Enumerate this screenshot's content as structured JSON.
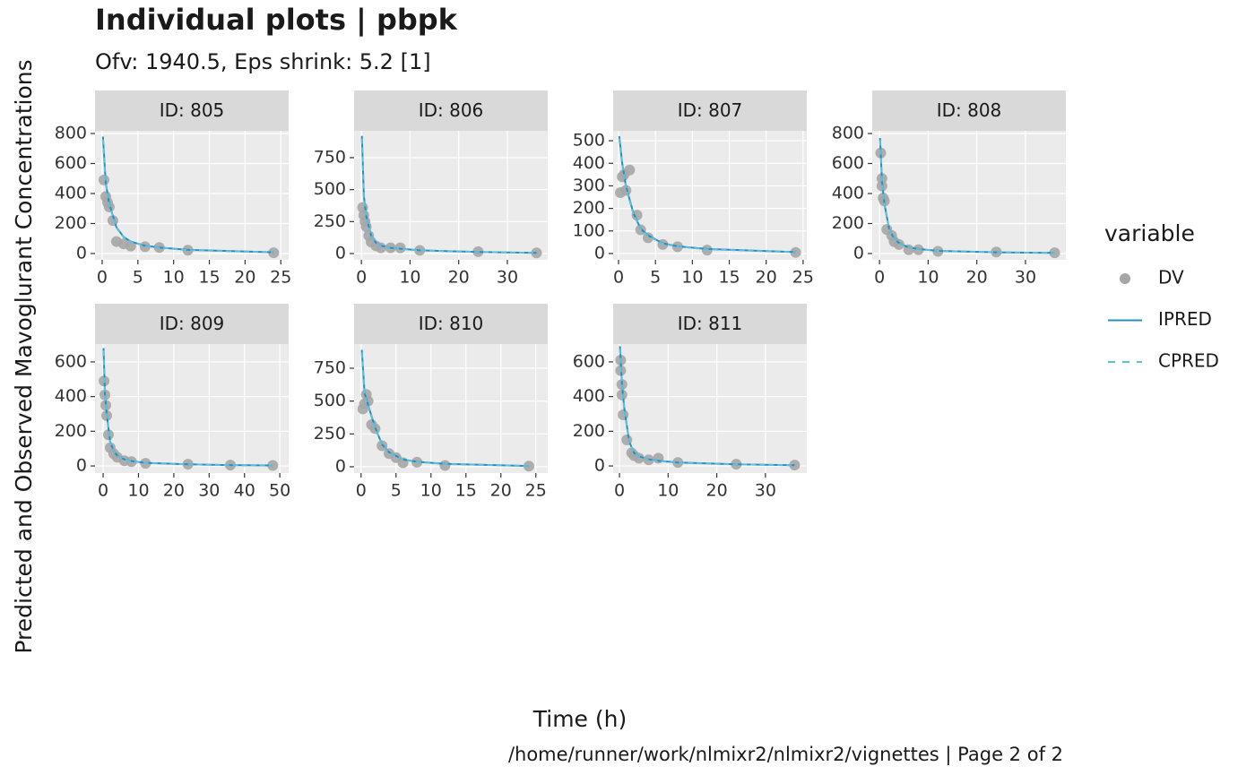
{
  "title": "Individual plots | pbpk",
  "subtitle": "Ofv: 1940.5, Eps shrink: 5.2 [1]",
  "x_label": "Time (h)",
  "y_label": "Predicted and Observed Mavoglurant Concentrations",
  "caption": "/home/runner/work/nlmixr2/nlmixr2/vignettes | Page 2 of 2",
  "legend_title": "variable",
  "chart_data": [
    {
      "type": "scatter-line",
      "title": "ID: 805",
      "xlim": [
        -1.0,
        26.1
      ],
      "xticks": [
        0,
        5,
        10,
        15,
        20,
        25
      ],
      "ylim": [
        -42,
        818
      ],
      "yticks": [
        0,
        200,
        400,
        600,
        800
      ],
      "grid": true,
      "series": [
        {
          "name": "DV",
          "color": "#a6a6a6",
          "x": [
            0.25,
            0.5,
            0.75,
            1,
            1.5,
            2,
            3,
            4,
            6,
            8,
            12,
            24
          ],
          "values": [
            490,
            380,
            340,
            310,
            220,
            80,
            65,
            50,
            45,
            40,
            22,
            5
          ]
        },
        {
          "name": "IPRED",
          "color": "#2b8cbe",
          "x": [
            0.1,
            0.5,
            1,
            2,
            3,
            4,
            6,
            8,
            12,
            24
          ],
          "values": [
            780,
            470,
            330,
            175,
            110,
            80,
            52,
            40,
            24,
            8
          ]
        },
        {
          "name": "CPRED",
          "color": "#5bc0de",
          "linetype": "dashed",
          "x": [
            0.1,
            0.5,
            1,
            2,
            3,
            4,
            6,
            8,
            12,
            24
          ],
          "values": [
            760,
            460,
            325,
            172,
            108,
            78,
            51,
            39,
            23,
            8
          ]
        }
      ]
    },
    {
      "type": "scatter-line",
      "title": "ID: 806",
      "xlim": [
        -1.5,
        38.3
      ],
      "xticks": [
        0,
        10,
        20,
        30
      ],
      "ylim": [
        -49,
        960
      ],
      "yticks": [
        0,
        250,
        500,
        750
      ],
      "grid": true,
      "series": [
        {
          "name": "DV",
          "color": "#a6a6a6",
          "x": [
            0.25,
            0.5,
            0.75,
            1,
            1.5,
            2,
            3,
            4,
            6,
            8,
            12,
            24,
            36
          ],
          "values": [
            360,
            300,
            250,
            210,
            140,
            90,
            60,
            45,
            45,
            45,
            25,
            15,
            5
          ]
        },
        {
          "name": "IPRED",
          "color": "#2b8cbe",
          "x": [
            0.1,
            0.5,
            1,
            2,
            3,
            4,
            6,
            8,
            12,
            24,
            36
          ],
          "values": [
            920,
            450,
            290,
            140,
            85,
            62,
            45,
            38,
            25,
            12,
            5
          ]
        },
        {
          "name": "CPRED",
          "color": "#5bc0de",
          "linetype": "dashed",
          "x": [
            0.1,
            0.5,
            1,
            2,
            3,
            4,
            6,
            8,
            12,
            24,
            36
          ],
          "values": [
            900,
            440,
            285,
            138,
            84,
            61,
            44,
            37,
            25,
            12,
            5
          ]
        }
      ]
    },
    {
      "type": "scatter-line",
      "title": "ID: 807",
      "xlim": [
        -0.73,
        25.5
      ],
      "xticks": [
        0,
        5,
        10,
        15,
        20,
        25
      ],
      "ylim": [
        -28,
        544
      ],
      "yticks": [
        0,
        100,
        200,
        300,
        400,
        500
      ],
      "grid": true,
      "series": [
        {
          "name": "DV",
          "color": "#a6a6a6",
          "x": [
            0.25,
            0.5,
            0.75,
            1,
            1.5,
            2.5,
            3,
            4,
            6,
            8,
            12,
            24
          ],
          "values": [
            270,
            340,
            350,
            280,
            370,
            170,
            105,
            70,
            40,
            30,
            15,
            5
          ]
        },
        {
          "name": "IPRED",
          "color": "#2b8cbe",
          "x": [
            0.1,
            0.5,
            1,
            2,
            3,
            4,
            6,
            8,
            12,
            24
          ],
          "values": [
            520,
            400,
            300,
            180,
            110,
            80,
            45,
            32,
            20,
            6
          ]
        },
        {
          "name": "CPRED",
          "color": "#5bc0de",
          "linetype": "dashed",
          "x": [
            0.1,
            0.5,
            1,
            2,
            3,
            4,
            6,
            8,
            12,
            24
          ],
          "values": [
            510,
            395,
            295,
            176,
            108,
            78,
            44,
            31,
            19,
            6
          ]
        }
      ]
    },
    {
      "type": "scatter-line",
      "title": "ID: 808",
      "xlim": [
        -1.5,
        38.3
      ],
      "xticks": [
        0,
        10,
        20,
        30
      ],
      "ylim": [
        -42,
        818
      ],
      "yticks": [
        0,
        200,
        400,
        600,
        800
      ],
      "grid": true,
      "series": [
        {
          "name": "DV",
          "color": "#a6a6a6",
          "x": [
            0.25,
            0.5,
            0.5,
            0.75,
            1,
            1.5,
            2.5,
            3,
            4,
            6,
            8,
            12,
            24,
            36
          ],
          "values": [
            670,
            500,
            450,
            370,
            350,
            160,
            120,
            80,
            60,
            25,
            25,
            15,
            10,
            5
          ]
        },
        {
          "name": "IPRED",
          "color": "#2b8cbe",
          "x": [
            0.1,
            0.5,
            1,
            2,
            3,
            4,
            6,
            8,
            12,
            24,
            36
          ],
          "values": [
            770,
            480,
            330,
            160,
            100,
            70,
            40,
            30,
            18,
            8,
            4
          ]
        },
        {
          "name": "CPRED",
          "color": "#5bc0de",
          "linetype": "dashed",
          "x": [
            0.1,
            0.5,
            1,
            2,
            3,
            4,
            6,
            8,
            12,
            24,
            36
          ],
          "values": [
            755,
            472,
            325,
            158,
            98,
            69,
            39,
            29,
            18,
            8,
            4
          ]
        }
      ]
    },
    {
      "type": "scatter-line",
      "title": "ID: 809",
      "xlim": [
        -2.3,
        52.5
      ],
      "xticks": [
        0,
        10,
        20,
        30,
        40,
        50
      ],
      "ylim": [
        -41,
        703
      ],
      "yticks": [
        0,
        200,
        400,
        600
      ],
      "grid": true,
      "series": [
        {
          "name": "DV",
          "color": "#a6a6a6",
          "x": [
            0.25,
            0.5,
            0.75,
            1,
            1.5,
            2,
            3,
            4,
            6,
            8,
            12,
            24,
            36,
            48
          ],
          "values": [
            490,
            410,
            350,
            290,
            180,
            105,
            70,
            50,
            30,
            25,
            15,
            10,
            5,
            3
          ]
        },
        {
          "name": "IPRED",
          "color": "#2b8cbe",
          "x": [
            0.1,
            0.5,
            1,
            2,
            3,
            4,
            6,
            8,
            12,
            24,
            36,
            48
          ],
          "values": [
            680,
            420,
            300,
            140,
            85,
            60,
            38,
            28,
            18,
            9,
            5,
            3
          ]
        },
        {
          "name": "CPRED",
          "color": "#5bc0de",
          "linetype": "dashed",
          "x": [
            0.1,
            0.5,
            1,
            2,
            3,
            4,
            6,
            8,
            12,
            24,
            36,
            48
          ],
          "values": [
            665,
            412,
            296,
            138,
            84,
            59,
            37,
            27,
            18,
            9,
            5,
            3
          ]
        }
      ]
    },
    {
      "type": "scatter-line",
      "title": "ID: 810",
      "xlim": [
        -1.0,
        26.7
      ],
      "xticks": [
        0,
        5,
        10,
        15,
        20,
        25
      ],
      "ylim": [
        -48,
        934
      ],
      "yticks": [
        0,
        250,
        500,
        750
      ],
      "grid": true,
      "series": [
        {
          "name": "DV",
          "color": "#a6a6a6",
          "x": [
            0.25,
            0.5,
            0.75,
            1,
            1.5,
            2,
            3,
            4,
            5,
            6,
            8,
            12,
            24
          ],
          "values": [
            440,
            480,
            550,
            500,
            320,
            290,
            160,
            100,
            70,
            30,
            35,
            10,
            5
          ]
        },
        {
          "name": "IPRED",
          "color": "#2b8cbe",
          "x": [
            0.1,
            0.5,
            1,
            2,
            3,
            4,
            6,
            8,
            12,
            24
          ],
          "values": [
            890,
            560,
            470,
            300,
            170,
            110,
            55,
            38,
            22,
            6
          ]
        },
        {
          "name": "CPRED",
          "color": "#5bc0de",
          "linetype": "dashed",
          "x": [
            0.1,
            0.5,
            1,
            2,
            3,
            4,
            6,
            8,
            12,
            24
          ],
          "values": [
            870,
            550,
            462,
            295,
            167,
            108,
            54,
            37,
            21,
            6
          ]
        }
      ]
    },
    {
      "type": "scatter-line",
      "title": "ID: 811",
      "xlim": [
        -1.3,
        38.5
      ],
      "xticks": [
        0,
        10,
        20,
        30
      ],
      "ylim": [
        -41,
        703
      ],
      "yticks": [
        0,
        200,
        400,
        600
      ],
      "grid": true,
      "series": [
        {
          "name": "DV",
          "color": "#a6a6a6",
          "x": [
            0.25,
            0.25,
            0.5,
            0.5,
            0.75,
            1.5,
            2.5,
            3,
            4,
            6,
            8,
            12,
            24,
            36
          ],
          "values": [
            610,
            550,
            470,
            410,
            295,
            150,
            75,
            60,
            45,
            35,
            45,
            20,
            10,
            5
          ]
        },
        {
          "name": "IPRED",
          "color": "#2b8cbe",
          "x": [
            0.1,
            0.5,
            1,
            2,
            3,
            4,
            6,
            8,
            12,
            24,
            36
          ],
          "values": [
            690,
            470,
            330,
            140,
            75,
            55,
            38,
            30,
            20,
            9,
            4
          ]
        },
        {
          "name": "CPRED",
          "color": "#5bc0de",
          "linetype": "dashed",
          "x": [
            0.1,
            0.5,
            1,
            2,
            3,
            4,
            6,
            8,
            12,
            24,
            36
          ],
          "values": [
            675,
            462,
            325,
            138,
            74,
            54,
            37,
            29,
            19,
            9,
            4
          ]
        }
      ]
    }
  ]
}
